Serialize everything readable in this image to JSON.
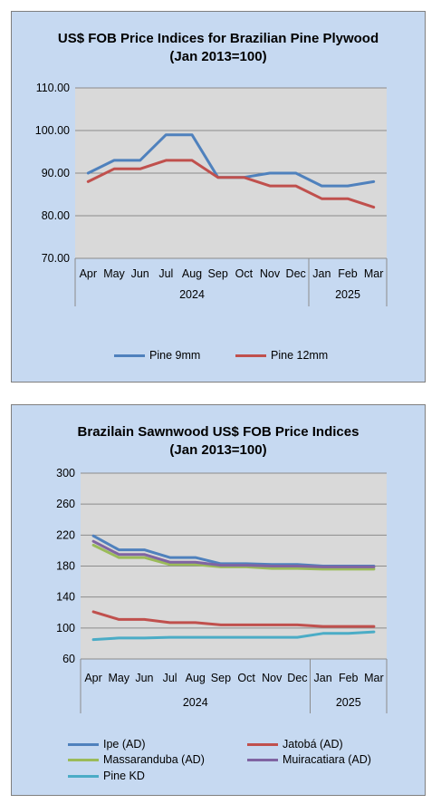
{
  "chart_data": [
    {
      "type": "line",
      "title": "US$ FOB Price Indices for Brazilian  Pine Plywood",
      "subtitle": "(Jan 2013=100)",
      "categories": [
        "Apr",
        "May",
        "Jun",
        "Jul",
        "Aug",
        "Sep",
        "Oct",
        "Nov",
        "Dec",
        "Jan",
        "Feb",
        "Mar"
      ],
      "groups": [
        {
          "label": "2024",
          "count": 9
        },
        {
          "label": "2025",
          "count": 3
        }
      ],
      "ylim": [
        70,
        110
      ],
      "yticks": [
        "70.00",
        "80.00",
        "90.00",
        "100.00",
        "110.00"
      ],
      "grid": true,
      "legend": "bottom",
      "series": [
        {
          "name": "Pine 9mm",
          "color": "#4f81bd",
          "values": [
            90,
            93,
            93,
            99,
            99,
            89,
            89,
            90,
            90,
            87,
            87,
            88
          ]
        },
        {
          "name": "Pine 12mm",
          "color": "#c0504d",
          "values": [
            88,
            91,
            91,
            93,
            93,
            89,
            89,
            87,
            87,
            84,
            84,
            82
          ]
        }
      ]
    },
    {
      "type": "line",
      "title": "Brazilain Sawnwood US$ FOB Price Indices",
      "subtitle": "(Jan 2013=100)",
      "categories": [
        "Apr",
        "May",
        "Jun",
        "Jul",
        "Aug",
        "Sep",
        "Oct",
        "Nov",
        "Dec",
        "Jan",
        "Feb",
        "Mar"
      ],
      "groups": [
        {
          "label": "2024",
          "count": 9
        },
        {
          "label": "2025",
          "count": 3
        }
      ],
      "ylim": [
        60,
        300
      ],
      "yticks": [
        "60",
        "100",
        "140",
        "180",
        "220",
        "260",
        "300"
      ],
      "grid": true,
      "legend": "bottom",
      "series": [
        {
          "name": "Ipe (AD)",
          "color": "#4f81bd",
          "values": [
            219,
            201,
            201,
            191,
            191,
            183,
            183,
            182,
            182,
            180,
            180,
            180
          ]
        },
        {
          "name": "Jatobá (AD)",
          "color": "#c0504d",
          "values": [
            121,
            111,
            111,
            107,
            107,
            104,
            104,
            104,
            104,
            102,
            102,
            102
          ]
        },
        {
          "name": "Massaranduba (AD)",
          "color": "#9bbb59",
          "values": [
            207,
            191,
            191,
            182,
            182,
            179,
            179,
            177,
            177,
            176,
            176,
            176
          ]
        },
        {
          "name": "Muiracatiara (AD)",
          "color": "#8064a2",
          "values": [
            212,
            195,
            195,
            185,
            185,
            181,
            181,
            180,
            180,
            179,
            179,
            179
          ]
        },
        {
          "name": "Pine KD",
          "color": "#4bacc6",
          "values": [
            85,
            87,
            87,
            88,
            88,
            88,
            88,
            88,
            88,
            93,
            93,
            95
          ]
        }
      ]
    }
  ]
}
